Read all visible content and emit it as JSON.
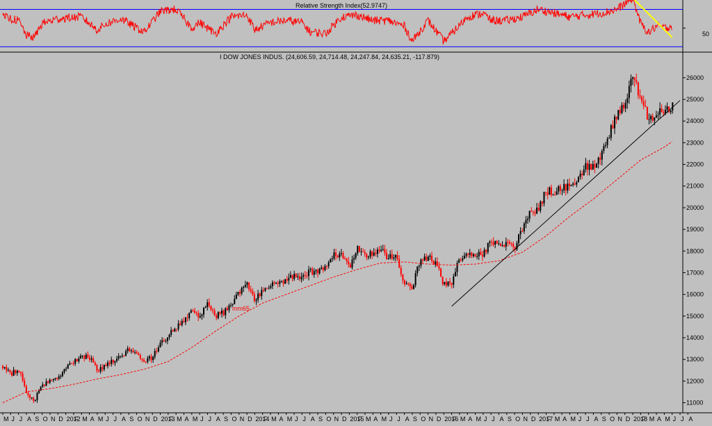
{
  "rsi_panel": {
    "title": "Relative Strength Index(52.9747)",
    "axis_label": "50"
  },
  "price_panel": {
    "title": "I DOW JONES INDUS. (24,606.59, 24,714.48, 24,247.84, 24,635.21, -117.879)",
    "ma_label": "mm65"
  },
  "colors": {
    "background": "#c0c0c0",
    "up_candle": "#000000",
    "down_candle": "#ff0000",
    "ma_line": "#ff0000",
    "rsi_line": "#ff0000",
    "rsi_band": "#0000ff",
    "rsi_trend": "#ffff00",
    "trendline": "#000000"
  },
  "chart_data": [
    {
      "type": "line",
      "title": "Relative Strength Index(52.9747)",
      "ylim": [
        25,
        80
      ],
      "reference_lines": [
        70,
        30
      ],
      "y_tick": [
        50
      ],
      "x": [
        "2011-05",
        "2011-07",
        "2011-08",
        "2011-09",
        "2011-10",
        "2011-12",
        "2012-03",
        "2012-05",
        "2012-06",
        "2012-08",
        "2012-10",
        "2012-11",
        "2013-01",
        "2013-03",
        "2013-05",
        "2013-06",
        "2013-08",
        "2013-10",
        "2013-12",
        "2014-01",
        "2014-03",
        "2014-05",
        "2014-07",
        "2014-08",
        "2014-10",
        "2014-12",
        "2015-02",
        "2015-04",
        "2015-06",
        "2015-08",
        "2015-09",
        "2015-11",
        "2016-01",
        "2016-02",
        "2016-04",
        "2016-06",
        "2016-07",
        "2016-09",
        "2016-11",
        "2017-01",
        "2017-03",
        "2017-05",
        "2017-07",
        "2017-09",
        "2017-11",
        "2018-01",
        "2018-02",
        "2018-03",
        "2018-04",
        "2018-05",
        "2018-06"
      ],
      "series": [
        {
          "values": [
            62,
            58,
            42,
            40,
            55,
            60,
            62,
            48,
            54,
            60,
            50,
            46,
            68,
            70,
            50,
            56,
            44,
            62,
            64,
            48,
            56,
            58,
            56,
            46,
            44,
            62,
            64,
            58,
            58,
            52,
            36,
            58,
            36,
            44,
            62,
            66,
            58,
            58,
            62,
            70,
            66,
            62,
            64,
            66,
            70,
            82,
            55,
            45,
            52,
            50,
            52
          ]
        }
      ],
      "trendline": {
        "from": [
          "2018-01",
          82
        ],
        "to": [
          "2018-06",
          40
        ]
      }
    },
    {
      "type": "candlestick",
      "title": "I DOW JONES INDUS. (24,606.59, 24,714.48, 24,247.84, 24,635.21, -117.879)",
      "ylim": [
        10600,
        26700
      ],
      "y_ticks": [
        11000,
        12000,
        13000,
        14000,
        15000,
        16000,
        17000,
        18000,
        19000,
        20000,
        21000,
        22000,
        23000,
        24000,
        25000,
        26000
      ],
      "x_start": "2011-05",
      "x_end": "2018-07",
      "x_tick_labels": [
        "M",
        "J",
        "J",
        "A",
        "S",
        "O",
        "N",
        "D",
        "2012",
        "F",
        "M",
        "A",
        "M",
        "J",
        "J",
        "A",
        "S",
        "O",
        "N",
        "D",
        "2013",
        "F",
        "M",
        "A",
        "M",
        "J",
        "J",
        "A",
        "S",
        "O",
        "N",
        "D",
        "2014",
        "F",
        "M",
        "A",
        "M",
        "J",
        "J",
        "A",
        "S",
        "O",
        "N",
        "D",
        "2015",
        "F",
        "M",
        "A",
        "M",
        "J",
        "J",
        "A",
        "S",
        "O",
        "N",
        "D",
        "2016",
        "F",
        "M",
        "A",
        "M",
        "J",
        "J",
        "A",
        "S",
        "O",
        "N",
        "D",
        "2017",
        "F",
        "M",
        "A",
        "M",
        "J",
        "J",
        "A",
        "S",
        "O",
        "N",
        "D",
        "2018",
        "F",
        "M",
        "A",
        "M",
        "J",
        "J",
        "A"
      ],
      "x_tick_dates": [
        "2011-05",
        "2011-06",
        "2011-07",
        "2011-08",
        "2011-09",
        "2011-10",
        "2011-11",
        "2011-12",
        "2012-01",
        "2012-02",
        "2012-03",
        "2012-04",
        "2012-05",
        "2012-06",
        "2012-07",
        "2012-08",
        "2012-09",
        "2012-10",
        "2012-11",
        "2012-12",
        "2013-01",
        "2013-02",
        "2013-03",
        "2013-04",
        "2013-05",
        "2013-06",
        "2013-07",
        "2013-08",
        "2013-09",
        "2013-10",
        "2013-11",
        "2013-12",
        "2014-01",
        "2014-02",
        "2014-03",
        "2014-04",
        "2014-05",
        "2014-06",
        "2014-07",
        "2014-08",
        "2014-09",
        "2014-10",
        "2014-11",
        "2014-12",
        "2015-01",
        "2015-02",
        "2015-03",
        "2015-04",
        "2015-05",
        "2015-06",
        "2015-07",
        "2015-08",
        "2015-09",
        "2015-10",
        "2015-11",
        "2015-12",
        "2016-01",
        "2016-02",
        "2016-03",
        "2016-04",
        "2016-05",
        "2016-06",
        "2016-07",
        "2016-08",
        "2016-09",
        "2016-10",
        "2016-11",
        "2016-12",
        "2017-01",
        "2017-02",
        "2017-03",
        "2017-04",
        "2017-05",
        "2017-06",
        "2017-07",
        "2017-08",
        "2017-09",
        "2017-10",
        "2017-11",
        "2017-12",
        "2018-01",
        "2018-02",
        "2018-03",
        "2018-04",
        "2018-05",
        "2018-06",
        "2018-07",
        "2018-08"
      ],
      "price_path": [
        [
          "2011-05",
          12700
        ],
        [
          "2011-06",
          12300
        ],
        [
          "2011-07",
          12600
        ],
        [
          "2011-08",
          11400
        ],
        [
          "2011-09",
          11100
        ],
        [
          "2011-10",
          11800
        ],
        [
          "2011-11",
          12000
        ],
        [
          "2011-12",
          12200
        ],
        [
          "2012-01",
          12600
        ],
        [
          "2012-02",
          12900
        ],
        [
          "2012-03",
          13150
        ],
        [
          "2012-04",
          13100
        ],
        [
          "2012-05",
          12500
        ],
        [
          "2012-06",
          12700
        ],
        [
          "2012-07",
          12950
        ],
        [
          "2012-08",
          13100
        ],
        [
          "2012-09",
          13450
        ],
        [
          "2012-10",
          13150
        ],
        [
          "2012-11",
          12900
        ],
        [
          "2012-12",
          13100
        ],
        [
          "2013-01",
          13800
        ],
        [
          "2013-02",
          14050
        ],
        [
          "2013-03",
          14500
        ],
        [
          "2013-04",
          14750
        ],
        [
          "2013-05",
          15200
        ],
        [
          "2013-06",
          14950
        ],
        [
          "2013-07",
          15550
        ],
        [
          "2013-08",
          15000
        ],
        [
          "2013-09",
          15150
        ],
        [
          "2013-10",
          15500
        ],
        [
          "2013-11",
          16050
        ],
        [
          "2013-12",
          16450
        ],
        [
          "2014-01",
          15700
        ],
        [
          "2014-02",
          16250
        ],
        [
          "2014-03",
          16450
        ],
        [
          "2014-04",
          16550
        ],
        [
          "2014-05",
          16700
        ],
        [
          "2014-06",
          16850
        ],
        [
          "2014-07",
          16700
        ],
        [
          "2014-08",
          17050
        ],
        [
          "2014-09",
          17050
        ],
        [
          "2014-10",
          17300
        ],
        [
          "2014-11",
          17850
        ],
        [
          "2014-12",
          17800
        ],
        [
          "2015-01",
          17250
        ],
        [
          "2015-02",
          18100
        ],
        [
          "2015-03",
          17800
        ],
        [
          "2015-04",
          17950
        ],
        [
          "2015-05",
          18050
        ],
        [
          "2015-06",
          17700
        ],
        [
          "2015-07",
          17750
        ],
        [
          "2015-08",
          16500
        ],
        [
          "2015-09",
          16300
        ],
        [
          "2015-10",
          17650
        ],
        [
          "2015-11",
          17700
        ],
        [
          "2015-12",
          17450
        ],
        [
          "2016-01",
          16450
        ],
        [
          "2016-02",
          16500
        ],
        [
          "2016-03",
          17650
        ],
        [
          "2016-04",
          17800
        ],
        [
          "2016-05",
          17750
        ],
        [
          "2016-06",
          17900
        ],
        [
          "2016-07",
          18450
        ],
        [
          "2016-08",
          18400
        ],
        [
          "2016-09",
          18300
        ],
        [
          "2016-10",
          18150
        ],
        [
          "2016-11",
          19100
        ],
        [
          "2016-12",
          19750
        ],
        [
          "2017-01",
          19900
        ],
        [
          "2017-02",
          20800
        ],
        [
          "2017-03",
          20700
        ],
        [
          "2017-04",
          20950
        ],
        [
          "2017-05",
          21000
        ],
        [
          "2017-06",
          21350
        ],
        [
          "2017-07",
          21900
        ],
        [
          "2017-08",
          21950
        ],
        [
          "2017-09",
          22400
        ],
        [
          "2017-10",
          23400
        ],
        [
          "2017-11",
          24250
        ],
        [
          "2017-12",
          24700
        ],
        [
          "2018-01",
          26150
        ],
        [
          "2018-02",
          25000
        ],
        [
          "2018-03",
          24100
        ],
        [
          "2018-04",
          24300
        ],
        [
          "2018-05",
          24450
        ],
        [
          "2018-06",
          24650
        ]
      ],
      "ma_label": "mm65",
      "ma_path": [
        [
          "2011-05",
          11000
        ],
        [
          "2011-08",
          11500
        ],
        [
          "2011-11",
          11650
        ],
        [
          "2012-02",
          11850
        ],
        [
          "2012-05",
          12100
        ],
        [
          "2012-08",
          12300
        ],
        [
          "2012-11",
          12550
        ],
        [
          "2013-02",
          12900
        ],
        [
          "2013-05",
          13550
        ],
        [
          "2013-08",
          14300
        ],
        [
          "2013-11",
          15000
        ],
        [
          "2014-02",
          15600
        ],
        [
          "2014-05",
          16000
        ],
        [
          "2014-08",
          16400
        ],
        [
          "2014-11",
          16800
        ],
        [
          "2015-02",
          17150
        ],
        [
          "2015-05",
          17450
        ],
        [
          "2015-08",
          17500
        ],
        [
          "2015-11",
          17400
        ],
        [
          "2016-02",
          17350
        ],
        [
          "2016-05",
          17400
        ],
        [
          "2016-08",
          17550
        ],
        [
          "2016-11",
          17950
        ],
        [
          "2017-02",
          18700
        ],
        [
          "2017-05",
          19600
        ],
        [
          "2017-08",
          20400
        ],
        [
          "2017-11",
          21300
        ],
        [
          "2018-02",
          22200
        ],
        [
          "2018-05",
          22800
        ],
        [
          "2018-06",
          23050
        ]
      ],
      "trendline": {
        "from": [
          "2016-02",
          15450
        ],
        "to": [
          "2018-07",
          24950
        ]
      }
    }
  ]
}
